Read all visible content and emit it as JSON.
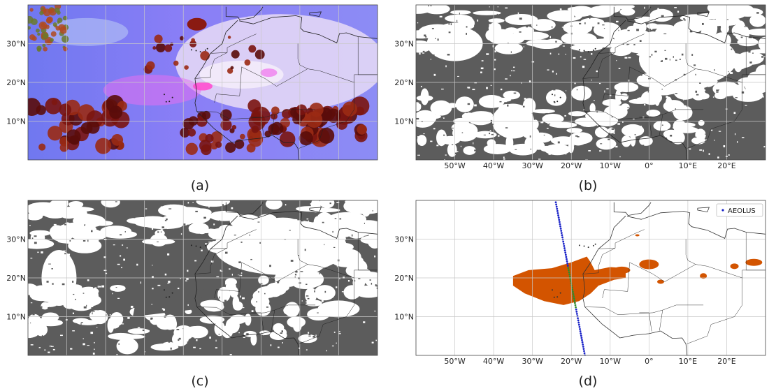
{
  "panels": [
    {
      "id": "a",
      "caption": "(a)",
      "kind": "rgb-composite",
      "show_x_ticks": false
    },
    {
      "id": "b",
      "caption": "(b)",
      "kind": "binary-mask",
      "show_x_ticks": true
    },
    {
      "id": "c",
      "caption": "(c)",
      "kind": "binary-mask",
      "show_x_ticks": false
    },
    {
      "id": "d",
      "caption": "(d)",
      "kind": "dust-detection",
      "show_x_ticks": true
    }
  ],
  "axes": {
    "lon_range": [
      -60,
      30
    ],
    "lat_range": [
      0,
      40
    ],
    "lon_ticks": [
      -50,
      -40,
      -30,
      -20,
      -10,
      0,
      10,
      20
    ],
    "lon_tick_labels": [
      "50°W",
      "40°W",
      "30°W",
      "20°W",
      "10°W",
      "0°",
      "10°E",
      "20°E"
    ],
    "lat_ticks": [
      10,
      20,
      30
    ],
    "lat_tick_labels": [
      "10°N",
      "20°N",
      "30°N"
    ],
    "grid": true
  },
  "legend": {
    "label": "AEOLUS",
    "placement": "top-right"
  },
  "aeolus_track": {
    "start": [
      -24,
      39.5
    ],
    "end": [
      -16.5,
      0
    ],
    "highlight_lat_range": [
      12,
      23
    ]
  },
  "colors": {
    "mask_gray": "#5c5c5c",
    "dust_orange": "#d35400",
    "track_blue": "#1a23c8",
    "track_green": "#2e8b2e",
    "grid": "#c8c8c8",
    "coast": "#333333"
  }
}
